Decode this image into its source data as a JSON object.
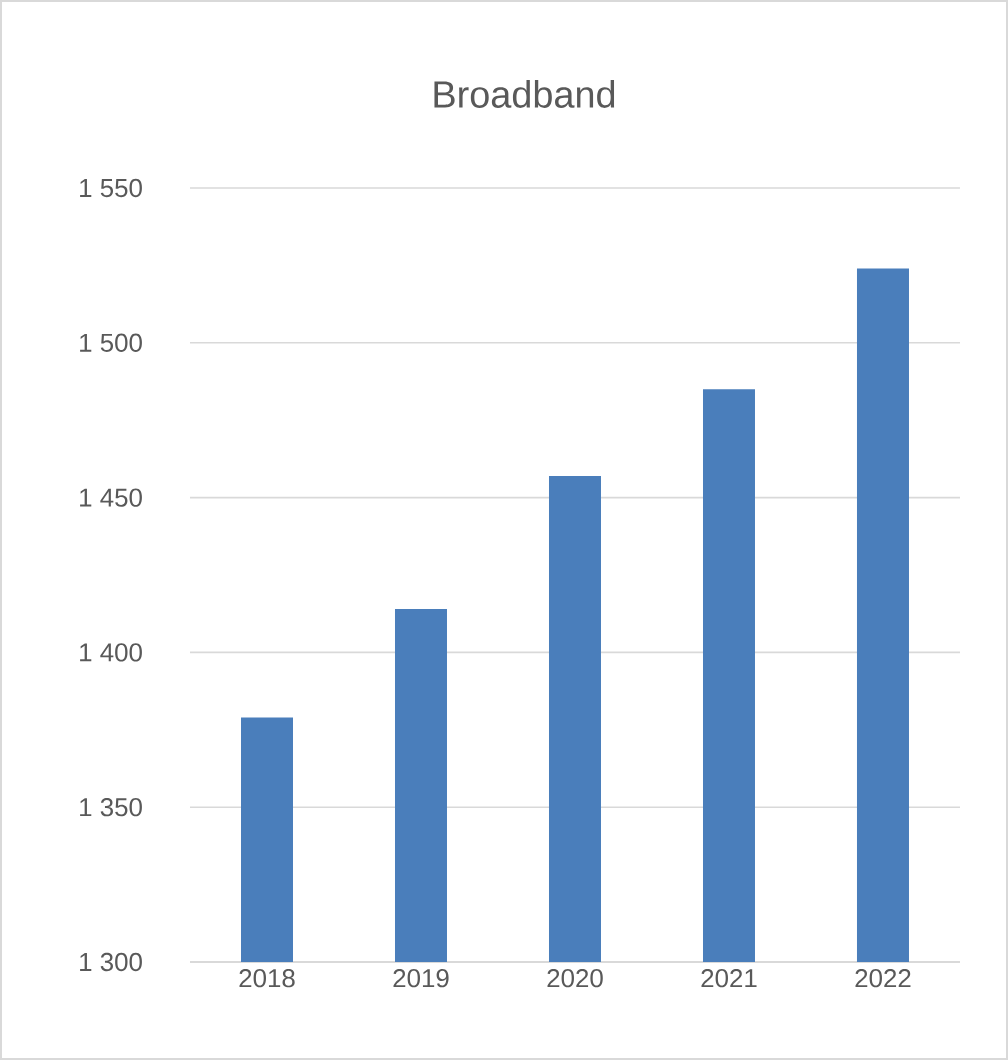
{
  "chart_data": {
    "type": "bar",
    "title": "Broadband",
    "categories": [
      "2018",
      "2019",
      "2020",
      "2021",
      "2022"
    ],
    "values": [
      1379,
      1414,
      1457,
      1485,
      1524
    ],
    "color": "#4a7ebb",
    "ylim": [
      1300,
      1550
    ],
    "yticks": [
      {
        "value": 1300,
        "label": "1 300"
      },
      {
        "value": 1350,
        "label": "1 350"
      },
      {
        "value": 1400,
        "label": "1 400"
      },
      {
        "value": 1450,
        "label": "1 450"
      },
      {
        "value": 1500,
        "label": "1 500"
      },
      {
        "value": 1550,
        "label": "1 550"
      }
    ],
    "grid": "y"
  }
}
